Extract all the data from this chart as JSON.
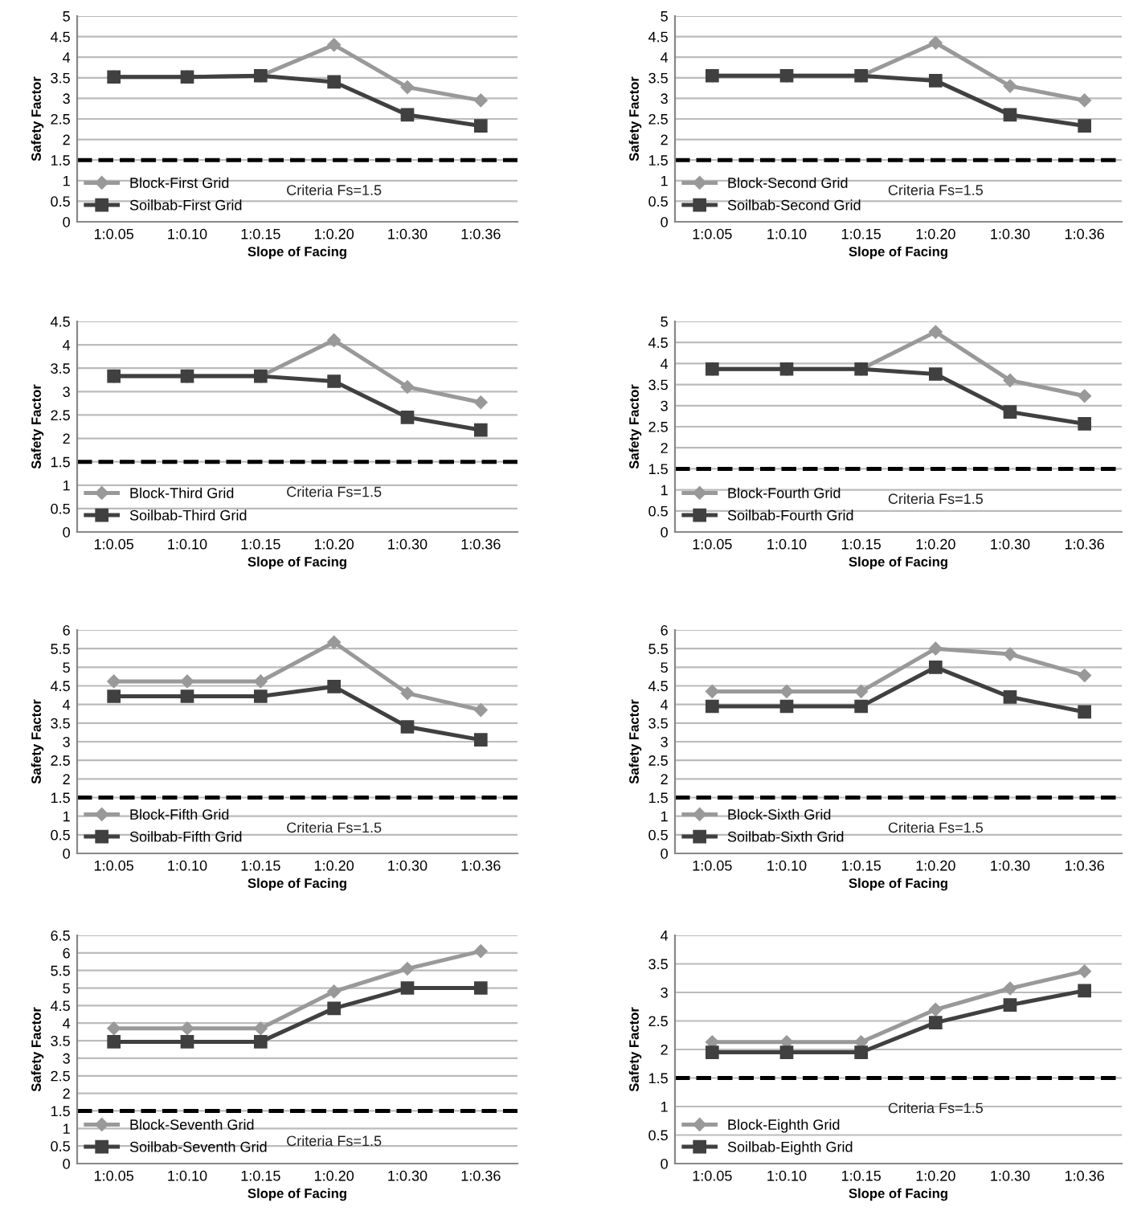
{
  "chart_data": [
    {
      "type": "line",
      "categories": [
        "1:0.05",
        "1:0.10",
        "1:0.15",
        "1:0.20",
        "1:0.30",
        "1:0.36"
      ],
      "xlabel": "Slope of Facing",
      "ylabel": "Safety Factor",
      "ylim": [
        0,
        5
      ],
      "yticks": [
        0,
        0.5,
        1,
        1.5,
        2,
        2.5,
        3,
        3.5,
        4,
        4.5,
        5
      ],
      "grid": "y",
      "legend": "bottom left",
      "ref_lines": [
        {
          "axis": "y",
          "value": 1.5,
          "label": "Criteria Fs=1.5",
          "color": "#000000",
          "line_style": "dashed"
        }
      ],
      "series": [
        {
          "name": "Block-First Grid",
          "color": "#999999",
          "marker": "diamond",
          "values": [
            3.52,
            3.52,
            3.55,
            4.3,
            3.27,
            2.95
          ]
        },
        {
          "name": "Soilbab-First Grid",
          "color": "#404040",
          "marker": "square",
          "values": [
            3.52,
            3.52,
            3.55,
            3.4,
            2.6,
            2.33
          ]
        }
      ]
    },
    {
      "type": "line",
      "categories": [
        "1:0.05",
        "1:0.10",
        "1:0.15",
        "1:0.20",
        "1:0.30",
        "1:0.36"
      ],
      "xlabel": "Slope of Facing",
      "ylabel": "Safety Factor",
      "ylim": [
        0,
        5
      ],
      "yticks": [
        0,
        0.5,
        1,
        1.5,
        2,
        2.5,
        3,
        3.5,
        4,
        4.5,
        5
      ],
      "grid": "y",
      "legend": "bottom left",
      "ref_lines": [
        {
          "axis": "y",
          "value": 1.5,
          "label": "Criteria Fs=1.5",
          "color": "#000000",
          "line_style": "dashed"
        }
      ],
      "series": [
        {
          "name": "Block-Second Grid",
          "color": "#999999",
          "marker": "diamond",
          "values": [
            3.55,
            3.55,
            3.55,
            4.35,
            3.3,
            2.95
          ]
        },
        {
          "name": "Soilbab-Second Grid",
          "color": "#404040",
          "marker": "square",
          "values": [
            3.55,
            3.55,
            3.55,
            3.43,
            2.6,
            2.33
          ]
        }
      ]
    },
    {
      "type": "line",
      "categories": [
        "1:0.05",
        "1:0.10",
        "1:0.15",
        "1:0.20",
        "1:0.30",
        "1:0.36"
      ],
      "xlabel": "Slope of Facing",
      "ylabel": "Safety Factor",
      "ylim": [
        0,
        4.5
      ],
      "yticks": [
        0,
        0.5,
        1,
        1.5,
        2,
        2.5,
        3,
        3.5,
        4,
        4.5
      ],
      "grid": "y",
      "legend": "bottom left",
      "ref_lines": [
        {
          "axis": "y",
          "value": 1.5,
          "label": "Criteria Fs=1.5",
          "color": "#000000",
          "line_style": "dashed"
        }
      ],
      "series": [
        {
          "name": "Block-Third Grid",
          "color": "#999999",
          "marker": "diamond",
          "values": [
            3.33,
            3.33,
            3.33,
            4.1,
            3.1,
            2.77
          ]
        },
        {
          "name": "Soilbab-Third Grid",
          "color": "#404040",
          "marker": "square",
          "values": [
            3.33,
            3.33,
            3.33,
            3.22,
            2.45,
            2.18
          ]
        }
      ]
    },
    {
      "type": "line",
      "categories": [
        "1:0.05",
        "1:0.10",
        "1:0.15",
        "1:0.20",
        "1:0.30",
        "1:0.36"
      ],
      "xlabel": "Slope of Facing",
      "ylabel": "Safety Factor",
      "ylim": [
        0,
        5
      ],
      "yticks": [
        0,
        0.5,
        1,
        1.5,
        2,
        2.5,
        3,
        3.5,
        4,
        4.5,
        5
      ],
      "grid": "y",
      "legend": "bottom left",
      "ref_lines": [
        {
          "axis": "y",
          "value": 1.5,
          "label": "Criteria Fs=1.5",
          "color": "#000000",
          "line_style": "dashed"
        }
      ],
      "series": [
        {
          "name": "Block-Fourth Grid",
          "color": "#999999",
          "marker": "diamond",
          "values": [
            3.87,
            3.87,
            3.87,
            4.75,
            3.6,
            3.23
          ]
        },
        {
          "name": "Soilbab-Fourth Grid",
          "color": "#404040",
          "marker": "square",
          "values": [
            3.87,
            3.87,
            3.87,
            3.75,
            2.85,
            2.57
          ]
        }
      ]
    },
    {
      "type": "line",
      "categories": [
        "1:0.05",
        "1:0.10",
        "1:0.15",
        "1:0.20",
        "1:0.30",
        "1:0.36"
      ],
      "xlabel": "Slope of Facing",
      "ylabel": "Safety Factor",
      "ylim": [
        0,
        6
      ],
      "yticks": [
        0,
        0.5,
        1,
        1.5,
        2,
        2.5,
        3,
        3.5,
        4,
        4.5,
        5,
        5.5,
        6
      ],
      "grid": "y",
      "legend": "bottom left",
      "ref_lines": [
        {
          "axis": "y",
          "value": 1.5,
          "label": "Criteria Fs=1.5",
          "color": "#000000",
          "line_style": "dashed"
        }
      ],
      "series": [
        {
          "name": "Block-Fifth Grid",
          "color": "#999999",
          "marker": "diamond",
          "values": [
            4.62,
            4.62,
            4.62,
            5.67,
            4.3,
            3.85
          ]
        },
        {
          "name": "Soilbab-Fifth Grid",
          "color": "#404040",
          "marker": "square",
          "values": [
            4.22,
            4.22,
            4.22,
            4.48,
            3.4,
            3.05
          ]
        }
      ]
    },
    {
      "type": "line",
      "categories": [
        "1:0.05",
        "1:0.10",
        "1:0.15",
        "1:0.20",
        "1:0.30",
        "1:0.36"
      ],
      "xlabel": "Slope of Facing",
      "ylabel": "Safety Factor",
      "ylim": [
        0,
        6
      ],
      "yticks": [
        0,
        0.5,
        1,
        1.5,
        2,
        2.5,
        3,
        3.5,
        4,
        4.5,
        5,
        5.5,
        6
      ],
      "grid": "y",
      "legend": "bottom left",
      "ref_lines": [
        {
          "axis": "y",
          "value": 1.5,
          "label": "Criteria Fs=1.5",
          "color": "#000000",
          "line_style": "dashed"
        }
      ],
      "series": [
        {
          "name": "Block-Sixth Grid",
          "color": "#999999",
          "marker": "diamond",
          "values": [
            4.35,
            4.35,
            4.35,
            5.5,
            5.35,
            4.78
          ]
        },
        {
          "name": "Soilbab-Sixth Grid",
          "color": "#404040",
          "marker": "square",
          "values": [
            3.95,
            3.95,
            3.95,
            5.0,
            4.2,
            3.8
          ]
        }
      ]
    },
    {
      "type": "line",
      "categories": [
        "1:0.05",
        "1:0.10",
        "1:0.15",
        "1:0.20",
        "1:0.30",
        "1:0.36"
      ],
      "xlabel": "Slope of Facing",
      "ylabel": "Safety Factor",
      "ylim": [
        0,
        6.5
      ],
      "yticks": [
        0,
        0.5,
        1,
        1.5,
        2,
        2.5,
        3,
        3.5,
        4,
        4.5,
        5,
        5.5,
        6,
        6.5
      ],
      "grid": "y",
      "legend": "bottom left",
      "ref_lines": [
        {
          "axis": "y",
          "value": 1.5,
          "label": "Criteria Fs=1.5",
          "color": "#000000",
          "line_style": "dashed"
        }
      ],
      "series": [
        {
          "name": "Block-Seventh Grid",
          "color": "#999999",
          "marker": "diamond",
          "values": [
            3.85,
            3.85,
            3.85,
            4.9,
            5.55,
            6.05
          ]
        },
        {
          "name": "Soilbab-Seventh Grid",
          "color": "#404040",
          "marker": "square",
          "values": [
            3.47,
            3.47,
            3.47,
            4.42,
            5.0,
            5.0
          ]
        }
      ]
    },
    {
      "type": "line",
      "categories": [
        "1:0.05",
        "1:0.10",
        "1:0.15",
        "1:0.20",
        "1:0.30",
        "1:0.36"
      ],
      "xlabel": "Slope of Facing",
      "ylabel": "Safety Factor",
      "ylim": [
        0,
        4
      ],
      "yticks": [
        0,
        0.5,
        1,
        1.5,
        2,
        2.5,
        3,
        3.5,
        4
      ],
      "grid": "y",
      "legend": "bottom left",
      "ref_lines": [
        {
          "axis": "y",
          "value": 1.5,
          "label": "Criteria Fs=1.5",
          "color": "#000000",
          "line_style": "dashed"
        }
      ],
      "series": [
        {
          "name": "Block-Eighth Grid",
          "color": "#999999",
          "marker": "diamond",
          "values": [
            2.13,
            2.13,
            2.13,
            2.7,
            3.07,
            3.37
          ]
        },
        {
          "name": "Soilbab-Eighth Grid",
          "color": "#404040",
          "marker": "square",
          "values": [
            1.95,
            1.95,
            1.95,
            2.47,
            2.78,
            3.03
          ]
        }
      ]
    }
  ]
}
